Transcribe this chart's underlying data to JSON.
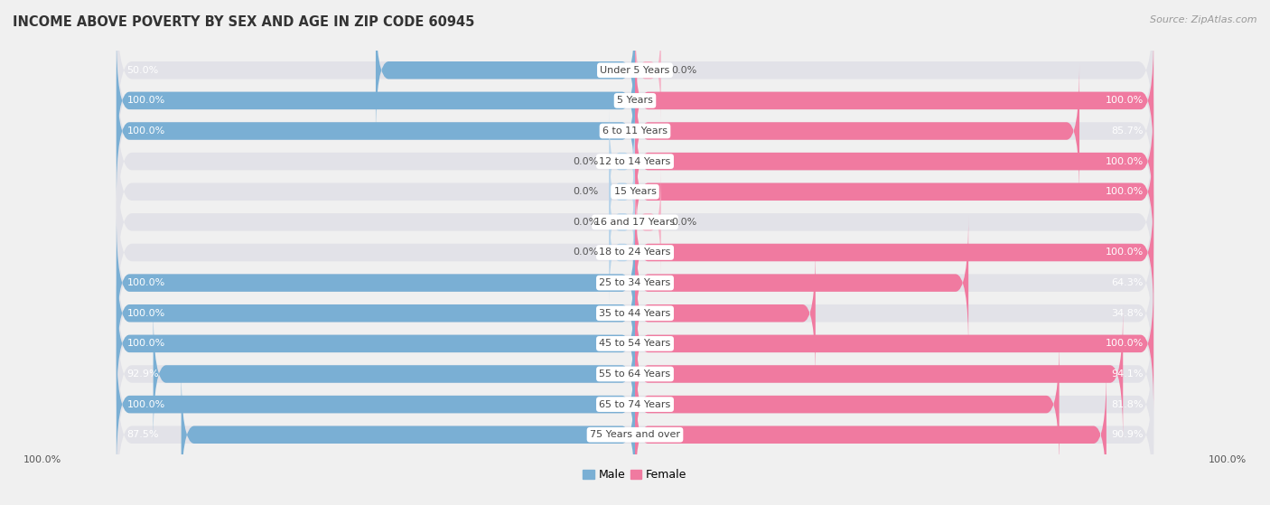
{
  "title": "INCOME ABOVE POVERTY BY SEX AND AGE IN ZIP CODE 60945",
  "source": "Source: ZipAtlas.com",
  "categories": [
    "Under 5 Years",
    "5 Years",
    "6 to 11 Years",
    "12 to 14 Years",
    "15 Years",
    "16 and 17 Years",
    "18 to 24 Years",
    "25 to 34 Years",
    "35 to 44 Years",
    "45 to 54 Years",
    "55 to 64 Years",
    "65 to 74 Years",
    "75 Years and over"
  ],
  "male_values": [
    50.0,
    100.0,
    100.0,
    0.0,
    0.0,
    0.0,
    0.0,
    100.0,
    100.0,
    100.0,
    92.9,
    100.0,
    87.5
  ],
  "female_values": [
    0.0,
    100.0,
    85.7,
    100.0,
    100.0,
    0.0,
    100.0,
    64.3,
    34.8,
    100.0,
    94.1,
    81.8,
    90.9
  ],
  "male_color": "#7aafd4",
  "female_color": "#f07aa0",
  "male_color_light": "#b8d4ea",
  "female_color_light": "#f5b0c5",
  "male_label": "Male",
  "female_label": "Female",
  "bg_color": "#f0f0f0",
  "row_bg_color": "#e2e2e8",
  "title_fontsize": 10.5,
  "source_fontsize": 8,
  "label_fontsize": 8,
  "value_fontsize": 8,
  "legend_fontsize": 9,
  "xlim": 100.0,
  "bottom_left_label": "100.0%",
  "bottom_right_label": "100.0%"
}
